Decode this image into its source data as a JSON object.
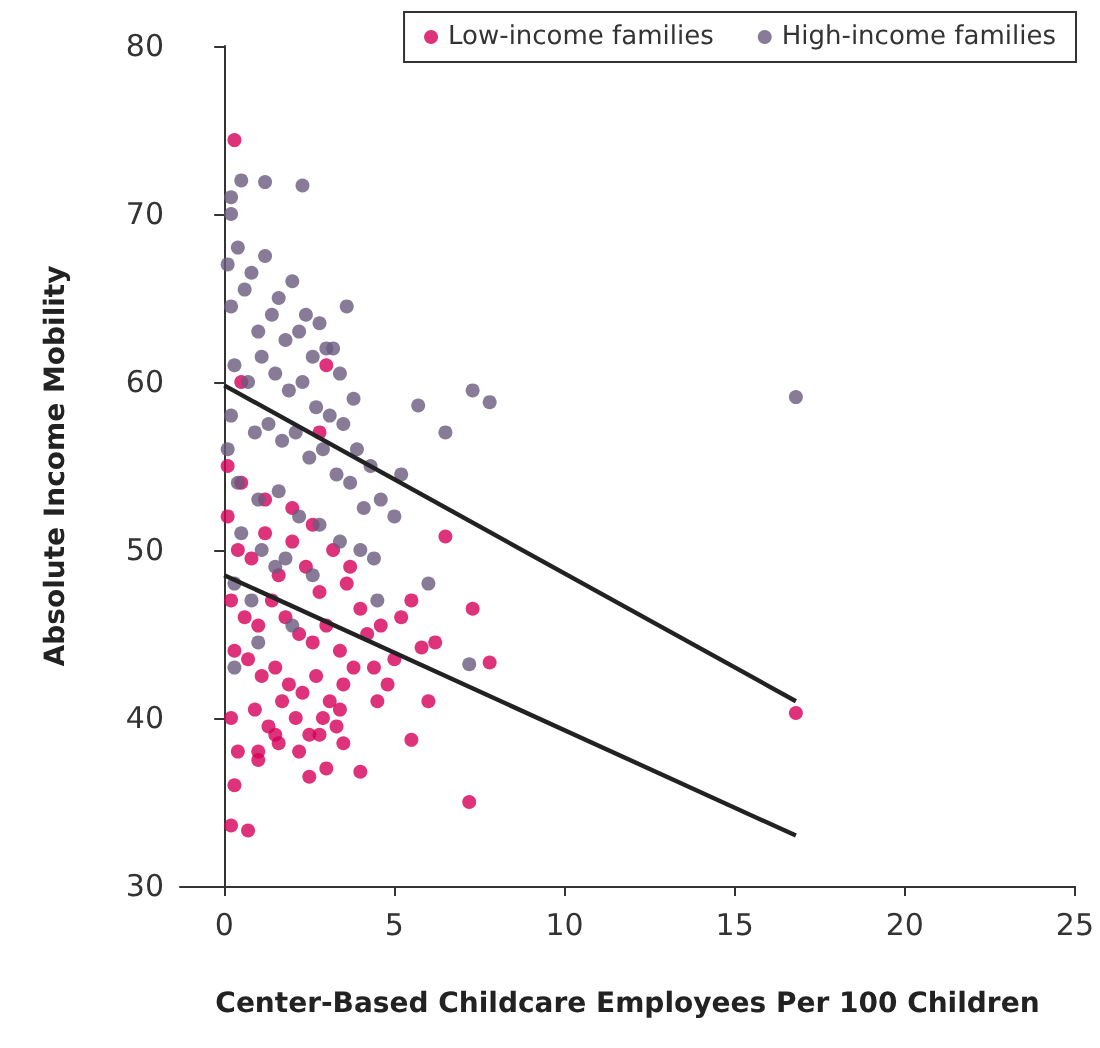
{
  "chart_data": {
    "type": "scatter",
    "xlabel": "Center-Based Childcare Employees Per 100 Children",
    "ylabel": "Absolute Income Mobility",
    "xlim": [
      -1.3,
      25
    ],
    "xticks": [
      0,
      5,
      10,
      15,
      20,
      25
    ],
    "ylim": [
      30,
      80
    ],
    "yticks": [
      30,
      40,
      50,
      60,
      70,
      80
    ],
    "grid": false,
    "legend": "top right",
    "marker": "circle",
    "series": [
      {
        "name": "Low-income families",
        "color": "#d6005a",
        "x": [
          0.3,
          16.8,
          7.2,
          0.2,
          0.7,
          7.3,
          7.8,
          6.0,
          5.5,
          4.0,
          3.0,
          2.5,
          1.0,
          1.5,
          0.3,
          5.0,
          6.2,
          6.5,
          4.5,
          3.5,
          5.5,
          5.8,
          3.0,
          0.5,
          2.8,
          0.1,
          0.4,
          0.8,
          1.2,
          1.6,
          2.0,
          2.4,
          2.8,
          3.2,
          3.6,
          4.0,
          0.2,
          0.6,
          1.0,
          1.4,
          1.8,
          2.2,
          2.6,
          3.0,
          3.4,
          3.8,
          4.2,
          0.3,
          0.7,
          1.1,
          1.5,
          1.9,
          2.3,
          2.7,
          3.1,
          3.5,
          4.4,
          0.2,
          0.9,
          1.3,
          1.7,
          2.1,
          2.5,
          2.9,
          3.3,
          0.4,
          1.0,
          1.6,
          2.2,
          2.8,
          3.4,
          4.6,
          5.2,
          0.1,
          0.5,
          1.2,
          2.0,
          2.6,
          3.7,
          4.8
        ],
        "values": [
          74.4,
          40.3,
          35.0,
          33.6,
          33.3,
          46.5,
          43.3,
          41.0,
          38.7,
          36.8,
          37.0,
          36.5,
          38.0,
          39.0,
          36.0,
          43.5,
          44.5,
          50.8,
          41.0,
          38.5,
          47.0,
          44.2,
          61.0,
          60.0,
          57.0,
          52.0,
          50.0,
          49.5,
          51.0,
          48.5,
          50.5,
          49.0,
          47.5,
          50.0,
          48.0,
          46.5,
          47.0,
          46.0,
          45.5,
          47.0,
          46.0,
          45.0,
          44.5,
          45.5,
          44.0,
          43.0,
          45.0,
          44.0,
          43.5,
          42.5,
          43.0,
          42.0,
          41.5,
          42.5,
          41.0,
          42.0,
          43.0,
          40.0,
          40.5,
          39.5,
          41.0,
          40.0,
          39.0,
          40.0,
          39.5,
          38.0,
          37.5,
          38.5,
          38.0,
          39.0,
          40.5,
          45.5,
          46.0,
          55.0,
          54.0,
          53.0,
          52.5,
          51.5,
          49.0,
          42.0
        ]
      },
      {
        "name": "High-income families",
        "color": "#6a5a7e",
        "x": [
          16.8,
          7.3,
          7.8,
          6.5,
          5.7,
          0.5,
          1.2,
          2.3,
          0.2,
          5.0,
          6.0,
          7.2,
          1.0,
          0.3,
          2.0,
          4.5,
          0.1,
          0.4,
          0.8,
          1.2,
          1.6,
          2.0,
          2.4,
          2.8,
          3.2,
          0.2,
          0.6,
          1.0,
          1.4,
          1.8,
          2.2,
          2.6,
          3.0,
          3.4,
          3.8,
          0.3,
          0.7,
          1.1,
          1.5,
          1.9,
          2.3,
          2.7,
          3.1,
          3.5,
          3.9,
          4.3,
          0.2,
          0.9,
          1.3,
          1.7,
          2.1,
          2.5,
          2.9,
          3.3,
          3.7,
          4.1,
          4.6,
          0.4,
          1.0,
          1.6,
          2.2,
          2.8,
          3.4,
          4.0,
          5.2,
          0.1,
          0.5,
          1.1,
          1.8,
          2.6,
          0.3,
          0.8,
          1.5,
          0.2,
          3.6,
          4.4
        ],
        "values": [
          59.1,
          59.5,
          58.8,
          57.0,
          58.6,
          72.0,
          71.9,
          71.7,
          71.0,
          52.0,
          48.0,
          43.2,
          44.5,
          43.0,
          45.5,
          47.0,
          67.0,
          68.0,
          66.5,
          67.5,
          65.0,
          66.0,
          64.0,
          63.5,
          62.0,
          64.5,
          65.5,
          63.0,
          64.0,
          62.5,
          63.0,
          61.5,
          62.0,
          60.5,
          59.0,
          61.0,
          60.0,
          61.5,
          60.5,
          59.5,
          60.0,
          58.5,
          58.0,
          57.5,
          56.0,
          55.0,
          58.0,
          57.0,
          57.5,
          56.5,
          57.0,
          55.5,
          56.0,
          54.5,
          54.0,
          52.5,
          53.0,
          54.0,
          53.0,
          53.5,
          52.0,
          51.5,
          50.5,
          50.0,
          54.5,
          56.0,
          51.0,
          50.0,
          49.5,
          48.5,
          48.0,
          47.0,
          49.0,
          70.0,
          64.5,
          49.5
        ]
      },
      {
        "type": "line",
        "marker": "none",
        "color": "#222222",
        "x": [
          0,
          16.8
        ],
        "values": [
          59.8,
          41.0
        ]
      },
      {
        "type": "line",
        "marker": "none",
        "color": "#222222",
        "x": [
          0,
          16.8
        ],
        "values": [
          48.5,
          33.0
        ]
      }
    ]
  }
}
